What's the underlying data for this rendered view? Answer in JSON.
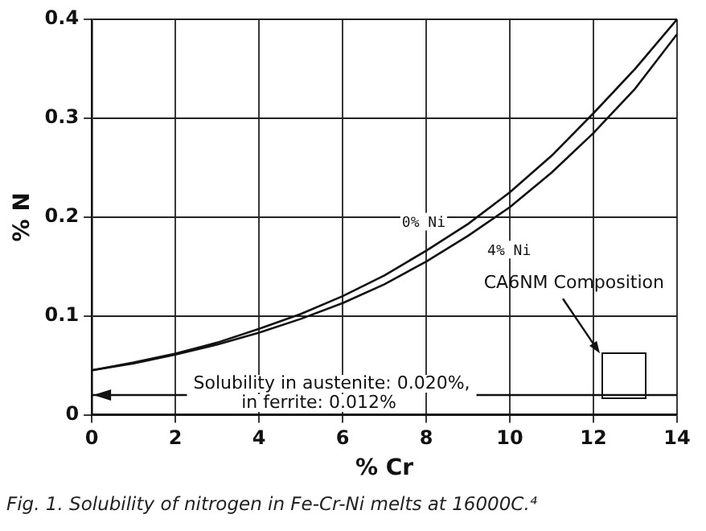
{
  "chart_data": {
    "type": "line",
    "xlabel": "% Cr",
    "ylabel": "% N",
    "x": [
      0,
      1,
      2,
      3,
      4,
      5,
      6,
      7,
      8,
      9,
      10,
      11,
      12,
      13,
      14
    ],
    "series": [
      {
        "name": "0% Ni",
        "color": "#111111",
        "values": [
          0.045,
          0.053,
          0.062,
          0.073,
          0.087,
          0.102,
          0.12,
          0.141,
          0.166,
          0.193,
          0.225,
          0.262,
          0.305,
          0.35,
          0.4
        ]
      },
      {
        "name": "4% Ni",
        "color": "#111111",
        "values": [
          0.045,
          0.052,
          0.061,
          0.071,
          0.083,
          0.097,
          0.113,
          0.132,
          0.155,
          0.181,
          0.21,
          0.245,
          0.285,
          0.33,
          0.385
        ]
      }
    ],
    "xlim": [
      0,
      14
    ],
    "xticks": [
      0,
      2,
      4,
      6,
      8,
      10,
      12,
      14
    ],
    "ylim": [
      0,
      0.4
    ],
    "yticks": [
      0,
      0.1,
      0.2,
      0.3,
      0.4
    ],
    "grid": true,
    "legend": false,
    "marker": "none",
    "line_style": "solid",
    "ref_lines": [
      {
        "axis": "y",
        "value": 0.02,
        "label": "Solubility in austenite: 0.020%,\nin ferrite: 0.012%",
        "color": "#111111"
      }
    ],
    "annotations": [
      "CA6NM Composition",
      "Fig. 1.  Solubility of nitrogen in Fe-Cr-Ni melts at 16000C.⁴"
    ]
  }
}
